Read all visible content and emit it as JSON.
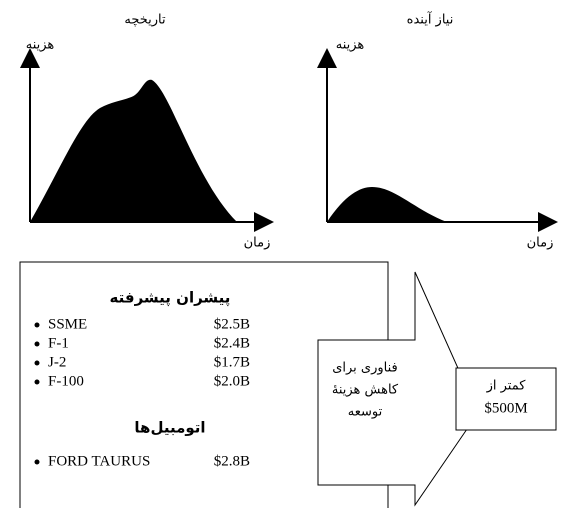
{
  "charts": [
    {
      "title": "تاریخچه",
      "y_label": "هزینه",
      "x_label": "زمان"
    },
    {
      "title": "نیاز آینده",
      "y_label": "هزینه",
      "x_label": "زمان"
    }
  ],
  "box": {
    "title": "پیشران پیشرفته",
    "items": [
      [
        "SSME",
        "$2.5B"
      ],
      [
        "F-1",
        "$2.4B"
      ],
      [
        "J-2",
        "$1.7B"
      ],
      [
        "F-100",
        "$2.0B"
      ]
    ],
    "subtitle": "اتومبیل‌ها",
    "sub_items": [
      [
        "FORD TAURUS",
        "$2.8B"
      ]
    ]
  },
  "arrow": {
    "lines": [
      "فناوری برای",
      "کاهش هزینهٔ",
      "توسعه"
    ]
  },
  "result": {
    "lines": [
      "کمتر از",
      "$500M"
    ]
  }
}
